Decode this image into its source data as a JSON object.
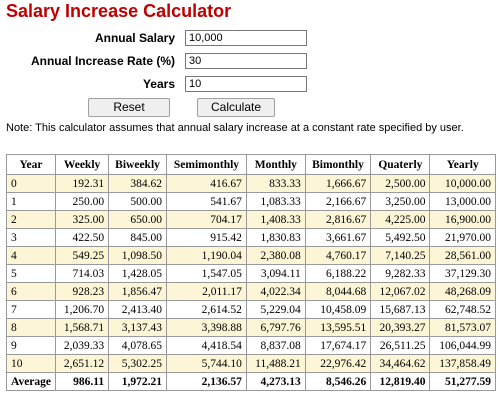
{
  "title": "Salary Increase Calculator",
  "form": {
    "annual_salary_label": "Annual Salary",
    "annual_salary_value": "10,000",
    "rate_label": "Annual Increase Rate (%)",
    "rate_value": "30",
    "years_label": "Years",
    "years_value": "10",
    "reset_label": "Reset",
    "calculate_label": "Calculate"
  },
  "note": "Note: This calculator assumes that annual salary increase at a constant rate specified by user.",
  "table": {
    "headers": [
      "Year",
      "Weekly",
      "Biweekly",
      "Semimonthly",
      "Monthly",
      "Bimonthly",
      "Quaterly",
      "Yearly"
    ],
    "rows": [
      [
        "0",
        "192.31",
        "384.62",
        "416.67",
        "833.33",
        "1,666.67",
        "2,500.00",
        "10,000.00"
      ],
      [
        "1",
        "250.00",
        "500.00",
        "541.67",
        "1,083.33",
        "2,166.67",
        "3,250.00",
        "13,000.00"
      ],
      [
        "2",
        "325.00",
        "650.00",
        "704.17",
        "1,408.33",
        "2,816.67",
        "4,225.00",
        "16,900.00"
      ],
      [
        "3",
        "422.50",
        "845.00",
        "915.42",
        "1,830.83",
        "3,661.67",
        "5,492.50",
        "21,970.00"
      ],
      [
        "4",
        "549.25",
        "1,098.50",
        "1,190.04",
        "2,380.08",
        "4,760.17",
        "7,140.25",
        "28,561.00"
      ],
      [
        "5",
        "714.03",
        "1,428.05",
        "1,547.05",
        "3,094.11",
        "6,188.22",
        "9,282.33",
        "37,129.30"
      ],
      [
        "6",
        "928.23",
        "1,856.47",
        "2,011.17",
        "4,022.34",
        "8,044.68",
        "12,067.02",
        "48,268.09"
      ],
      [
        "7",
        "1,206.70",
        "2,413.40",
        "2,614.52",
        "5,229.04",
        "10,458.09",
        "15,687.13",
        "62,748.52"
      ],
      [
        "8",
        "1,568.71",
        "3,137.43",
        "3,398.88",
        "6,797.76",
        "13,595.51",
        "20,393.27",
        "81,573.07"
      ],
      [
        "9",
        "2,039.33",
        "4,078.65",
        "4,418.54",
        "8,837.08",
        "17,674.17",
        "26,511.25",
        "106,044.99"
      ],
      [
        "10",
        "2,651.12",
        "5,302.25",
        "5,744.10",
        "11,488.21",
        "22,976.42",
        "34,464.62",
        "137,858.49"
      ]
    ],
    "average": [
      "Average",
      "986.11",
      "1,972.21",
      "2,136.57",
      "4,273.13",
      "8,546.26",
      "12,819.40",
      "51,277.59"
    ]
  }
}
